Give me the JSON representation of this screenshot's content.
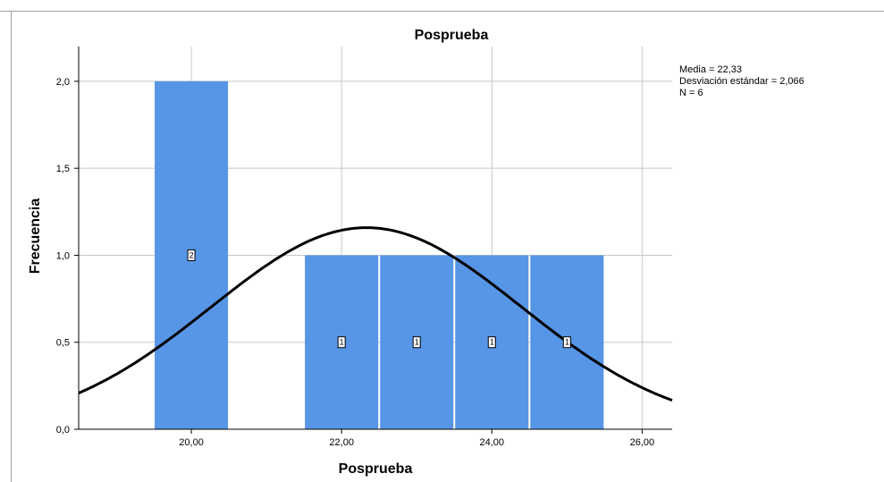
{
  "chart_data": {
    "type": "bar",
    "title": "Posprueba",
    "xlabel": "Posprueba",
    "ylabel": "Frecuencia",
    "x_ticks": [
      "20,00",
      "22,00",
      "24,00",
      "26,00"
    ],
    "x_tick_values": [
      20,
      22,
      24,
      26
    ],
    "y_ticks": [
      "0,0",
      "0,5",
      "1,0",
      "1,5",
      "2,0"
    ],
    "y_tick_values": [
      0,
      0.5,
      1,
      1.5,
      2
    ],
    "xlim": [
      18.5,
      26.4
    ],
    "ylim": [
      0,
      2.2
    ],
    "bin_width": 1,
    "bins": [
      {
        "center": 20,
        "value": 2
      },
      {
        "center": 22,
        "value": 1
      },
      {
        "center": 23,
        "value": 1
      },
      {
        "center": 24,
        "value": 1
      },
      {
        "center": 25,
        "value": 1
      }
    ],
    "bar_labels": [
      "2",
      "1",
      "1",
      "1",
      "1"
    ],
    "bar_color": "#5795e6",
    "normal_curve": {
      "mean": 22.33,
      "sd": 2.066,
      "n": 6
    },
    "stats": [
      "Media = 22,33",
      "Desviación estándar = 2,066",
      "N = 6"
    ],
    "grid": true
  }
}
